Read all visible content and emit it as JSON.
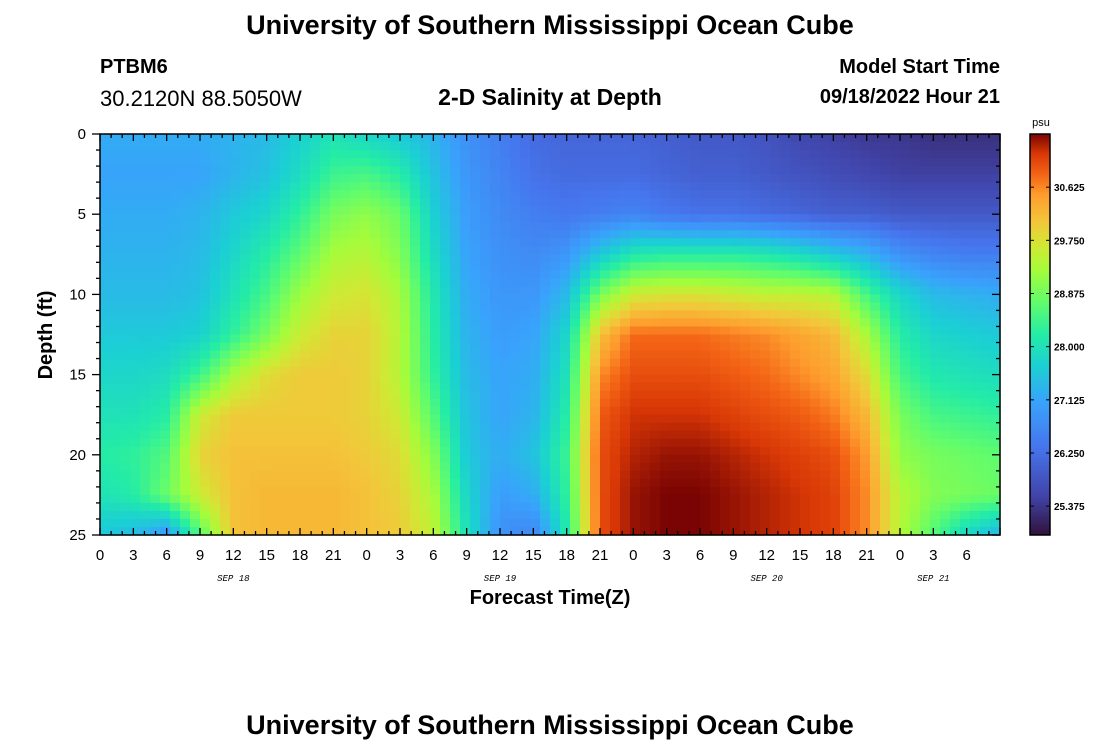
{
  "header": {
    "title": "University of Southern Mississippi Ocean Cube",
    "station_id": "PTBM6",
    "station_coords": "30.2120N  88.5050W",
    "subtitle": "2-D Salinity at Depth",
    "model_start_label": "Model Start Time",
    "model_start_value": "09/18/2022 Hour 21"
  },
  "footer": {
    "title": "University of Southern Mississippi Ocean Cube"
  },
  "chart_data": {
    "type": "heatmap",
    "title": "2-D Salinity at Depth",
    "xlabel": "Forecast Time(Z)",
    "ylabel": "Depth (ft)",
    "x_hours": [
      0,
      3,
      6,
      9,
      12,
      15,
      18,
      21,
      24,
      27,
      30,
      33,
      36,
      39,
      42,
      45,
      48,
      51,
      54,
      57,
      60,
      63,
      66,
      69,
      72,
      75,
      78,
      81
    ],
    "x_tick_labels": [
      "0",
      "3",
      "6",
      "9",
      "12",
      "15",
      "18",
      "21",
      "0",
      "3",
      "6",
      "9",
      "12",
      "15",
      "18",
      "21",
      "0",
      "3",
      "6",
      "9",
      "12",
      "15",
      "18",
      "21",
      "0",
      "3",
      "6"
    ],
    "x_day_labels": [
      {
        "label": "SEP 18",
        "hour": 12
      },
      {
        "label": "SEP 19",
        "hour": 36
      },
      {
        "label": "SEP 20",
        "hour": 60
      },
      {
        "label": "SEP 21",
        "hour": 75
      }
    ],
    "xlim": [
      0,
      81
    ],
    "ylim": [
      0,
      25
    ],
    "y_ticks": [
      0,
      5,
      10,
      15,
      20,
      25
    ],
    "y_inverted": true,
    "depths_ft": [
      0,
      2.5,
      5,
      7.5,
      10,
      12.5,
      15,
      17.5,
      20,
      22.5,
      25
    ],
    "salinity_psu": [
      [
        27.2,
        27.2,
        27.2,
        27.2,
        27.3,
        27.4,
        27.7,
        28.0,
        27.8,
        27.6,
        27.3,
        26.8,
        26.5,
        26.2,
        26.1,
        26.1,
        26.1,
        26.0,
        25.9,
        25.9,
        25.8,
        25.6,
        25.5,
        25.4,
        25.4,
        25.3,
        25.3,
        25.3
      ],
      [
        27.1,
        27.1,
        27.1,
        27.1,
        27.3,
        27.5,
        27.9,
        28.4,
        28.5,
        28.2,
        27.5,
        26.9,
        26.6,
        26.3,
        26.2,
        26.2,
        26.2,
        26.1,
        26.0,
        26.0,
        25.9,
        25.8,
        25.7,
        25.6,
        25.5,
        25.5,
        25.5,
        25.5
      ],
      [
        27.2,
        27.2,
        27.2,
        27.3,
        27.6,
        27.8,
        28.3,
        28.9,
        29.1,
        28.8,
        27.7,
        27.0,
        26.7,
        26.5,
        26.4,
        26.5,
        26.6,
        26.4,
        26.3,
        26.3,
        26.2,
        26.1,
        26.0,
        26.0,
        25.9,
        25.9,
        25.9,
        25.9
      ],
      [
        27.3,
        27.3,
        27.3,
        27.4,
        27.8,
        28.2,
        28.7,
        29.3,
        29.4,
        29.0,
        27.9,
        27.1,
        26.8,
        26.7,
        26.9,
        27.6,
        28.1,
        28.2,
        28.2,
        28.2,
        28.1,
        27.9,
        27.6,
        27.3,
        26.8,
        26.6,
        26.5,
        26.5
      ],
      [
        27.4,
        27.4,
        27.4,
        27.5,
        28.0,
        28.5,
        29.2,
        29.6,
        29.7,
        29.3,
        28.1,
        27.2,
        26.9,
        26.9,
        27.4,
        28.9,
        29.6,
        29.7,
        29.7,
        29.6,
        29.5,
        29.5,
        29.4,
        28.5,
        27.8,
        27.4,
        27.3,
        27.2
      ],
      [
        27.6,
        27.6,
        27.6,
        27.7,
        28.3,
        28.9,
        29.6,
        29.9,
        29.9,
        29.4,
        28.2,
        27.3,
        27.0,
        27.1,
        27.8,
        30.1,
        30.8,
        30.8,
        30.8,
        30.7,
        30.6,
        30.4,
        30.2,
        29.3,
        28.2,
        27.8,
        27.7,
        27.6
      ],
      [
        27.8,
        27.8,
        27.9,
        28.4,
        29.3,
        29.8,
        30.0,
        30.0,
        29.9,
        29.4,
        28.3,
        27.4,
        27.1,
        27.2,
        28.0,
        30.6,
        31.0,
        31.0,
        31.0,
        30.9,
        30.8,
        30.6,
        30.4,
        29.8,
        28.5,
        28.1,
        28.0,
        27.9
      ],
      [
        28.0,
        28.0,
        28.2,
        29.6,
        30.0,
        30.0,
        30.0,
        30.0,
        29.9,
        29.6,
        28.6,
        27.5,
        27.1,
        27.3,
        28.2,
        30.9,
        31.2,
        31.2,
        31.2,
        31.1,
        31.0,
        30.9,
        30.7,
        30.2,
        28.9,
        28.5,
        28.4,
        28.3
      ],
      [
        28.2,
        28.3,
        28.6,
        29.9,
        30.1,
        30.1,
        30.1,
        30.1,
        30.0,
        29.8,
        29.0,
        27.6,
        27.2,
        27.5,
        28.4,
        31.0,
        31.3,
        31.4,
        31.4,
        31.3,
        31.2,
        31.1,
        31.0,
        30.5,
        29.1,
        28.9,
        28.8,
        28.7
      ],
      [
        28.0,
        28.2,
        28.8,
        29.6,
        30.1,
        30.2,
        30.2,
        30.2,
        30.1,
        29.9,
        29.3,
        27.8,
        27.0,
        27.2,
        28.3,
        31.0,
        31.4,
        31.5,
        31.5,
        31.4,
        31.3,
        31.2,
        31.1,
        30.6,
        29.4,
        29.0,
        28.9,
        28.8
      ],
      [
        27.6,
        27.4,
        26.9,
        28.6,
        30.1,
        30.2,
        30.2,
        30.2,
        30.1,
        30.0,
        29.5,
        28.0,
        26.8,
        26.6,
        28.1,
        31.0,
        31.4,
        31.5,
        31.5,
        31.4,
        31.3,
        31.2,
        31.1,
        30.6,
        29.4,
        28.6,
        27.8,
        27.3
      ]
    ],
    "colorbar": {
      "unit": "psu",
      "ticks": [
        "30.625",
        "29.750",
        "28.875",
        "28.000",
        "27.125",
        "26.250",
        "25.375"
      ],
      "tick_values": [
        30.625,
        29.75,
        28.875,
        28.0,
        27.125,
        26.25,
        25.375
      ],
      "range": [
        24.9,
        31.5
      ]
    },
    "grid": false,
    "legend": "colorbar right"
  }
}
